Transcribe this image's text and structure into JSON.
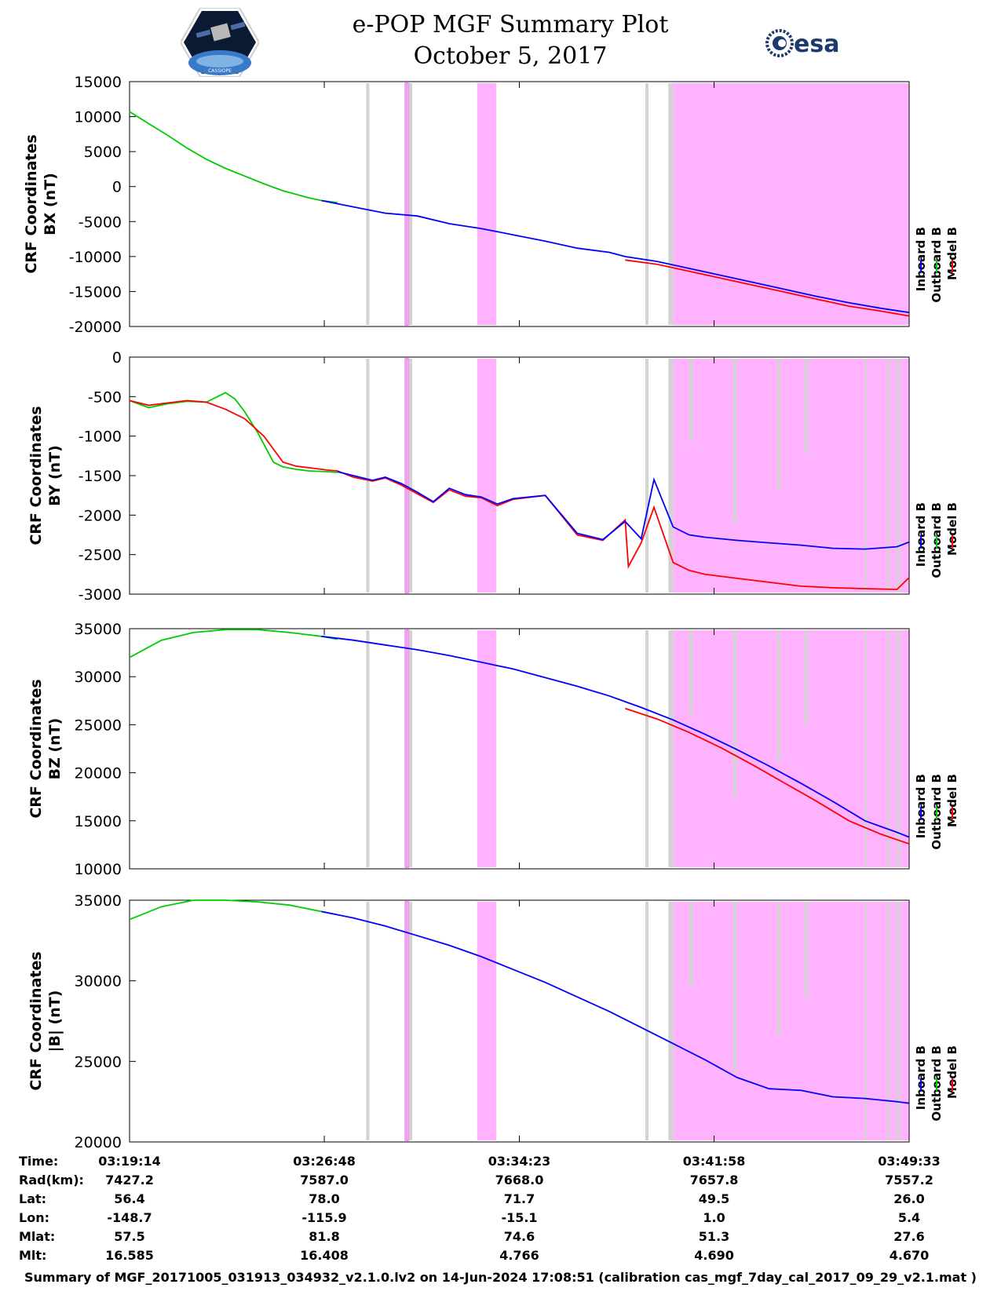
{
  "header": {
    "title_line1": "e-POP MGF Summary Plot",
    "title_line2": "October 5, 2017",
    "logo_left_icon": "cassiope-mission-logo-icon",
    "logo_right_icon": "esa-logo-icon",
    "logo_right_text": "esa",
    "logo_left_text": "CASSIOPE"
  },
  "colors": {
    "inboard": "#0000ff",
    "outboard": "#00cc00",
    "model": "#ff0000",
    "gray_flag": "#d3d3d3",
    "pink_flag": "#ffb3ff"
  },
  "chart_data": [
    {
      "type": "line",
      "ylabel": [
        "CRF Coordinates",
        "BX (nT)"
      ],
      "ylim": [
        -20000,
        15000
      ],
      "yticks": [
        15000,
        10000,
        5000,
        0,
        -5000,
        -10000,
        -15000,
        -20000
      ],
      "legend": [
        "Inboard B",
        "Outboard B",
        "Model B"
      ],
      "legend_placement": "right",
      "series": [
        {
          "name": "Outboard B",
          "x": [
            0,
            60,
            120,
            180,
            240,
            300,
            360,
            420,
            480,
            520,
            560,
            600,
            650
          ],
          "values": [
            10700,
            9000,
            7300,
            5500,
            3900,
            2600,
            1500,
            400,
            -600,
            -1100,
            -1600,
            -2000,
            -2300
          ]
        },
        {
          "name": "Inboard B",
          "x": [
            600,
            700,
            800,
            900,
            1000,
            1100,
            1200,
            1300,
            1400,
            1500,
            1550,
            1650,
            1750,
            1850,
            1950,
            2050,
            2150,
            2250,
            2350,
            2438
          ],
          "values": [
            -2000,
            -2900,
            -3800,
            -4200,
            -5300,
            -6000,
            -6900,
            -7800,
            -8800,
            -9400,
            -10000,
            -10700,
            -11700,
            -12700,
            -13700,
            -14700,
            -15700,
            -16600,
            -17400,
            -18000
          ]
        },
        {
          "name": "Model B",
          "x": [
            1550,
            1650,
            1750,
            1850,
            1950,
            2050,
            2150,
            2250,
            2350,
            2438
          ],
          "values": [
            -10500,
            -11100,
            -12100,
            -13100,
            -14100,
            -15100,
            -16100,
            -17100,
            -17800,
            -18500
          ]
        }
      ]
    },
    {
      "type": "line",
      "ylabel": [
        "CRF Coordinates",
        "BY (nT)"
      ],
      "ylim": [
        -3000,
        0
      ],
      "yticks": [
        0,
        -500,
        -1000,
        -1500,
        -2000,
        -2500,
        -3000
      ],
      "legend": [
        "Inboard B",
        "Outboard B",
        "Model B"
      ],
      "legend_placement": "right",
      "series": [
        {
          "name": "Outboard B",
          "x": [
            0,
            60,
            120,
            180,
            240,
            300,
            330,
            360,
            400,
            450,
            480,
            520,
            560,
            620,
            650
          ],
          "values": [
            -550,
            -640,
            -590,
            -560,
            -570,
            -450,
            -530,
            -690,
            -950,
            -1330,
            -1390,
            -1420,
            -1440,
            -1450,
            -1460
          ]
        },
        {
          "name": "Model B",
          "x": [
            0,
            60,
            120,
            180,
            240,
            300,
            360,
            420,
            480,
            520,
            560,
            620,
            650,
            700,
            760,
            800,
            850,
            900,
            950,
            1000,
            1050,
            1100,
            1150,
            1200,
            1300,
            1400,
            1480,
            1550,
            1560,
            1600,
            1640,
            1700,
            1750,
            1800,
            1900,
            2000,
            2100,
            2200,
            2300,
            2400,
            2438
          ],
          "values": [
            -550,
            -610,
            -580,
            -550,
            -570,
            -660,
            -780,
            -1000,
            -1330,
            -1380,
            -1400,
            -1430,
            -1440,
            -1520,
            -1570,
            -1530,
            -1620,
            -1730,
            -1840,
            -1680,
            -1760,
            -1780,
            -1880,
            -1800,
            -1750,
            -2250,
            -2320,
            -2060,
            -2650,
            -2350,
            -1900,
            -2600,
            -2700,
            -2750,
            -2800,
            -2850,
            -2900,
            -2920,
            -2930,
            -2940,
            -2790
          ]
        },
        {
          "name": "Inboard B",
          "x": [
            650,
            700,
            760,
            800,
            850,
            900,
            950,
            1000,
            1050,
            1100,
            1150,
            1200,
            1300,
            1400,
            1480,
            1550,
            1600,
            1640,
            1700,
            1750,
            1800,
            1900,
            2000,
            2100,
            2200,
            2300,
            2400,
            2438
          ],
          "values": [
            -1450,
            -1500,
            -1560,
            -1520,
            -1600,
            -1710,
            -1830,
            -1660,
            -1740,
            -1770,
            -1860,
            -1790,
            -1750,
            -2230,
            -2310,
            -2080,
            -2300,
            -1550,
            -2150,
            -2250,
            -2280,
            -2320,
            -2350,
            -2380,
            -2420,
            -2430,
            -2400,
            -2340
          ]
        }
      ]
    },
    {
      "type": "line",
      "ylabel": [
        "CRF Coordinates",
        "BZ (nT)"
      ],
      "ylim": [
        10000,
        35000
      ],
      "yticks": [
        35000,
        30000,
        25000,
        20000,
        15000,
        10000
      ],
      "legend": [
        "Inboard B",
        "Outboard B",
        "Model B"
      ],
      "legend_placement": "right",
      "series": [
        {
          "name": "Outboard B",
          "x": [
            0,
            100,
            200,
            300,
            400,
            500,
            600,
            650
          ],
          "values": [
            32000,
            33800,
            34600,
            34900,
            34900,
            34600,
            34200,
            33900
          ]
        },
        {
          "name": "Inboard B",
          "x": [
            600,
            700,
            800,
            900,
            1000,
            1100,
            1200,
            1300,
            1400,
            1500,
            1600,
            1700,
            1800,
            1900,
            2000,
            2100,
            2200,
            2300,
            2400,
            2438
          ],
          "values": [
            34200,
            33800,
            33300,
            32800,
            32200,
            31500,
            30800,
            29900,
            29000,
            28000,
            26800,
            25500,
            24000,
            22400,
            20700,
            18900,
            17000,
            15000,
            13800,
            13300
          ]
        },
        {
          "name": "Model B",
          "x": [
            1550,
            1650,
            1750,
            1850,
            1950,
            2050,
            2150,
            2250,
            2350,
            2438
          ],
          "values": [
            26700,
            25600,
            24200,
            22600,
            20800,
            18900,
            17000,
            15000,
            13600,
            12600
          ]
        }
      ]
    },
    {
      "type": "line",
      "ylabel": [
        "CRF Coordinates",
        "|B| (nT)"
      ],
      "ylim": [
        20000,
        35000
      ],
      "yticks": [
        35000,
        30000,
        25000,
        20000
      ],
      "legend": [
        "Inboard B",
        "Outboard B",
        "Model B"
      ],
      "legend_placement": "right",
      "series": [
        {
          "name": "Outboard B",
          "x": [
            0,
            100,
            200,
            300,
            400,
            500,
            600,
            650
          ],
          "values": [
            33800,
            34600,
            35000,
            35000,
            34900,
            34700,
            34300,
            34100
          ]
        },
        {
          "name": "Inboard B",
          "x": [
            600,
            700,
            800,
            900,
            1000,
            1100,
            1200,
            1300,
            1400,
            1500,
            1600,
            1700,
            1800,
            1900,
            2000,
            2100,
            2200,
            2300,
            2400,
            2438
          ],
          "values": [
            34300,
            33900,
            33400,
            32800,
            32200,
            31500,
            30700,
            29900,
            29000,
            28100,
            27100,
            26100,
            25100,
            24000,
            23300,
            23200,
            22800,
            22700,
            22500,
            22400
          ]
        }
      ]
    }
  ],
  "flags": {
    "x_range": [
      0,
      2438
    ],
    "gray": [
      [
        740,
        750
      ],
      [
        874,
        884
      ],
      [
        1613,
        1623
      ],
      [
        1685,
        1700
      ]
    ],
    "pink_thin": [
      [
        862,
        864
      ],
      [
        868,
        870
      ]
    ],
    "pink_wide": [
      [
        1087,
        1147
      ],
      [
        1700,
        2438
      ]
    ]
  },
  "table": {
    "row_labels": [
      "Time:",
      "Rad(km):",
      "Lat:",
      "Lon:",
      "Mlat:",
      "Mlt:"
    ],
    "columns": [
      {
        "x_value": 0,
        "values": [
          "03:19:14",
          "7427.2",
          "56.4",
          "-148.7",
          "57.5",
          "16.585"
        ]
      },
      {
        "x_value": 609,
        "values": [
          "03:26:48",
          "7587.0",
          "78.0",
          "-115.9",
          "81.8",
          "16.408"
        ]
      },
      {
        "x_value": 1219,
        "values": [
          "03:34:23",
          "7668.0",
          "71.7",
          "-15.1",
          "74.6",
          "4.766"
        ]
      },
      {
        "x_value": 1828,
        "values": [
          "03:41:58",
          "7657.8",
          "49.5",
          "1.0",
          "51.3",
          "4.690"
        ]
      },
      {
        "x_value": 2438,
        "values": [
          "03:49:33",
          "7557.2",
          "26.0",
          "5.4",
          "27.6",
          "4.670"
        ]
      }
    ]
  },
  "caption": "Summary of MGF_20171005_031913_034932_v2.1.0.lv2 on 14-Jun-2024 17:08:51 (calibration cas_mgf_7day_cal_2017_09_29_v2.1.mat )"
}
